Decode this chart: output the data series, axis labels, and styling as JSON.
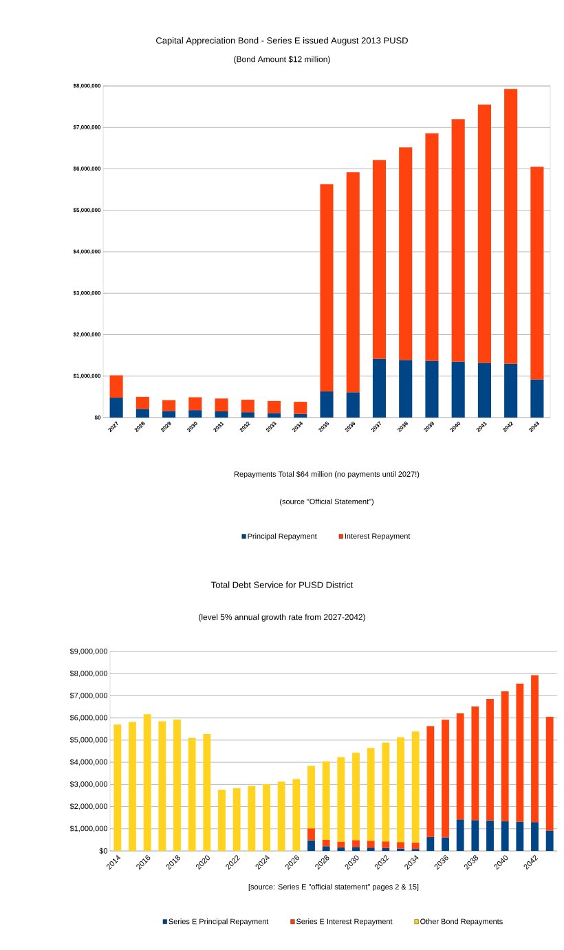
{
  "chart_data": [
    {
      "type": "bar",
      "title": "Capital Appreciation Bond - Series E issued August 2013 PUSD",
      "subtitle": "(Bond Amount $12 million)",
      "xlabel": "Repayments Total $64 million (no payments until 2027!)",
      "annotations": [
        "(source \"Official Statement\")"
      ],
      "categories": [
        "2027",
        "2028",
        "2029",
        "2030",
        "2031",
        "2032",
        "2033",
        "2034",
        "2035",
        "2036",
        "2037",
        "2038",
        "2039",
        "2040",
        "2041",
        "2042",
        "2043"
      ],
      "stacked": true,
      "grid": "y",
      "legend": "bottom",
      "ylim": [
        0,
        8000000
      ],
      "yticks": [
        {
          "value": 0,
          "label": "$0"
        },
        {
          "value": 1000000,
          "label": "$1,000,000"
        },
        {
          "value": 2000000,
          "label": "$2,000,000"
        },
        {
          "value": 3000000,
          "label": "$3,000,000"
        },
        {
          "value": 4000000,
          "label": "$4,000,000"
        },
        {
          "value": 5000000,
          "label": "$5,000,000"
        },
        {
          "value": 6000000,
          "label": "$6,000,000"
        },
        {
          "value": 7000000,
          "label": "$7,000,000"
        },
        {
          "value": 8000000,
          "label": "$8,000,000"
        }
      ],
      "series": [
        {
          "name": "Principal Repayment",
          "color": "#004586",
          "values": [
            480000,
            210000,
            160000,
            180000,
            150000,
            130000,
            110000,
            90000,
            630000,
            610000,
            1420000,
            1390000,
            1370000,
            1350000,
            1320000,
            1300000,
            920000
          ]
        },
        {
          "name": "Interest Repayment",
          "color": "#ff420e",
          "values": [
            540000,
            290000,
            260000,
            310000,
            310000,
            300000,
            290000,
            290000,
            5000000,
            5310000,
            4790000,
            5130000,
            5490000,
            5850000,
            6230000,
            6630000,
            5130000
          ]
        }
      ]
    },
    {
      "type": "bar",
      "title": "Total Debt Service for PUSD District",
      "subtitle": "(level 5% annual growth rate from 2027-2042)",
      "annotations": [
        "[source: Series E \"official statement\" pages 2 & 15]"
      ],
      "categories": [
        "2014",
        null,
        "2016",
        null,
        "2018",
        null,
        "2020",
        null,
        "2022",
        null,
        "2024",
        null,
        "2026",
        null,
        "2028",
        null,
        "2030",
        null,
        "2032",
        null,
        "2034",
        null,
        "2036",
        null,
        "2038",
        null,
        "2040",
        null,
        "2042",
        null
      ],
      "stacked": true,
      "grid": "y",
      "legend": "bottom",
      "ylim": [
        0,
        9000000
      ],
      "yticks": [
        {
          "value": 0,
          "label": "$0"
        },
        {
          "value": 1000000,
          "label": "$1,000,000"
        },
        {
          "value": 2000000,
          "label": "$2,000,000"
        },
        {
          "value": 3000000,
          "label": "$3,000,000"
        },
        {
          "value": 4000000,
          "label": "$4,000,000"
        },
        {
          "value": 5000000,
          "label": "$5,000,000"
        },
        {
          "value": 6000000,
          "label": "$6,000,000"
        },
        {
          "value": 7000000,
          "label": "$7,000,000"
        },
        {
          "value": 8000000,
          "label": "$8,000,000"
        },
        {
          "value": 9000000,
          "label": "$9,000,000"
        }
      ],
      "series": [
        {
          "name": "Series E Principal Repayment",
          "color": "#004586",
          "values": [
            null,
            null,
            null,
            null,
            null,
            null,
            null,
            null,
            null,
            null,
            null,
            null,
            null,
            480000,
            210000,
            160000,
            180000,
            150000,
            130000,
            110000,
            90000,
            630000,
            610000,
            1420000,
            1390000,
            1370000,
            1350000,
            1320000,
            1300000,
            920000
          ]
        },
        {
          "name": "Series E Interest Repayment",
          "color": "#ff420e",
          "values": [
            null,
            null,
            null,
            null,
            null,
            null,
            null,
            null,
            null,
            null,
            null,
            null,
            null,
            540000,
            290000,
            260000,
            310000,
            310000,
            300000,
            290000,
            290000,
            5000000,
            5310000,
            4790000,
            5130000,
            5490000,
            5850000,
            6230000,
            6630000,
            5130000
          ]
        },
        {
          "name": "Other Bond Repayments",
          "color": "#ffd320",
          "values": [
            5700000,
            5820000,
            6170000,
            5850000,
            5930000,
            5100000,
            5280000,
            2760000,
            2830000,
            2930000,
            3010000,
            3130000,
            3240000,
            2820000,
            3540000,
            3810000,
            3940000,
            4190000,
            4460000,
            4730000,
            5010000,
            null,
            null,
            null,
            null,
            null,
            null,
            null,
            null,
            null
          ]
        }
      ]
    }
  ]
}
